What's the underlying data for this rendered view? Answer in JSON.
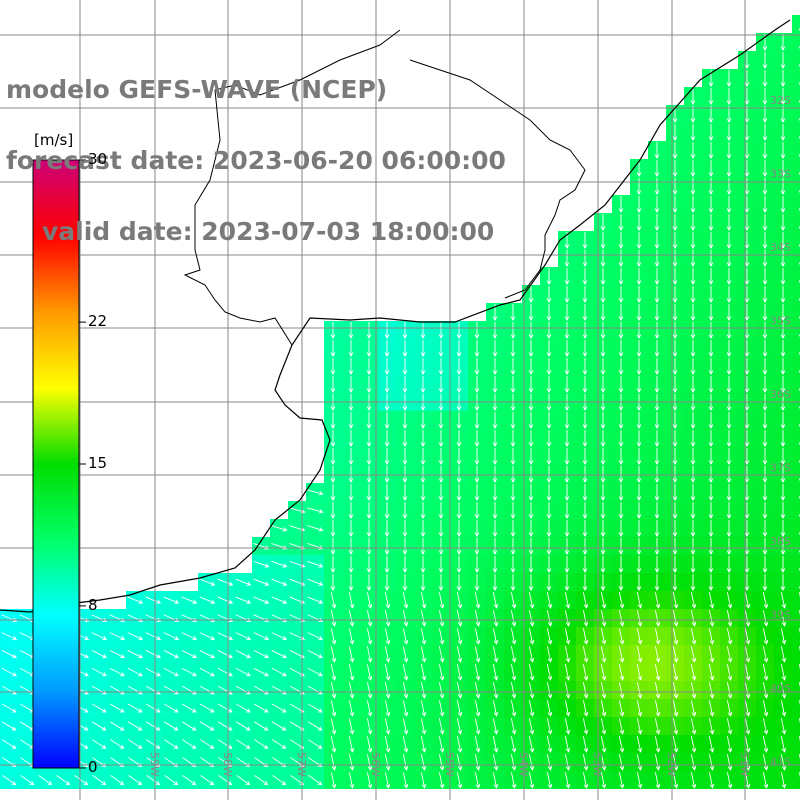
{
  "header": {
    "line1": "modelo GEFS-WAVE (NCEP)",
    "line2": "forecast date: 2023-06-20 06:00:00",
    "line3": "valid date: 2023-07-03 18:00:00"
  },
  "colorbar": {
    "unit": "[m/s]",
    "ticks": [
      {
        "label": "30",
        "value": 30
      },
      {
        "label": "22",
        "value": 22
      },
      {
        "label": "15",
        "value": 15
      },
      {
        "label": "8",
        "value": 8
      },
      {
        "label": "0",
        "value": 0
      }
    ],
    "colors": [
      "#0000ff",
      "#0099ff",
      "#00ffff",
      "#00ff66",
      "#00dd00",
      "#ffff00",
      "#ff9900",
      "#ff0000",
      "#cc0077"
    ]
  },
  "lat_labels": [
    "32S",
    "33S",
    "34S",
    "35S",
    "36S",
    "37S",
    "38S",
    "39S",
    "40S",
    "41S"
  ],
  "lon_labels": [
    "59W",
    "58W",
    "57W",
    "56W",
    "55W",
    "54W",
    "53W",
    "52W",
    "51W"
  ],
  "legend": {
    "wind_speed_colors": {
      "low": "#1e90ff",
      "mid": "#00ee99",
      "high": "#e6f21a"
    }
  }
}
